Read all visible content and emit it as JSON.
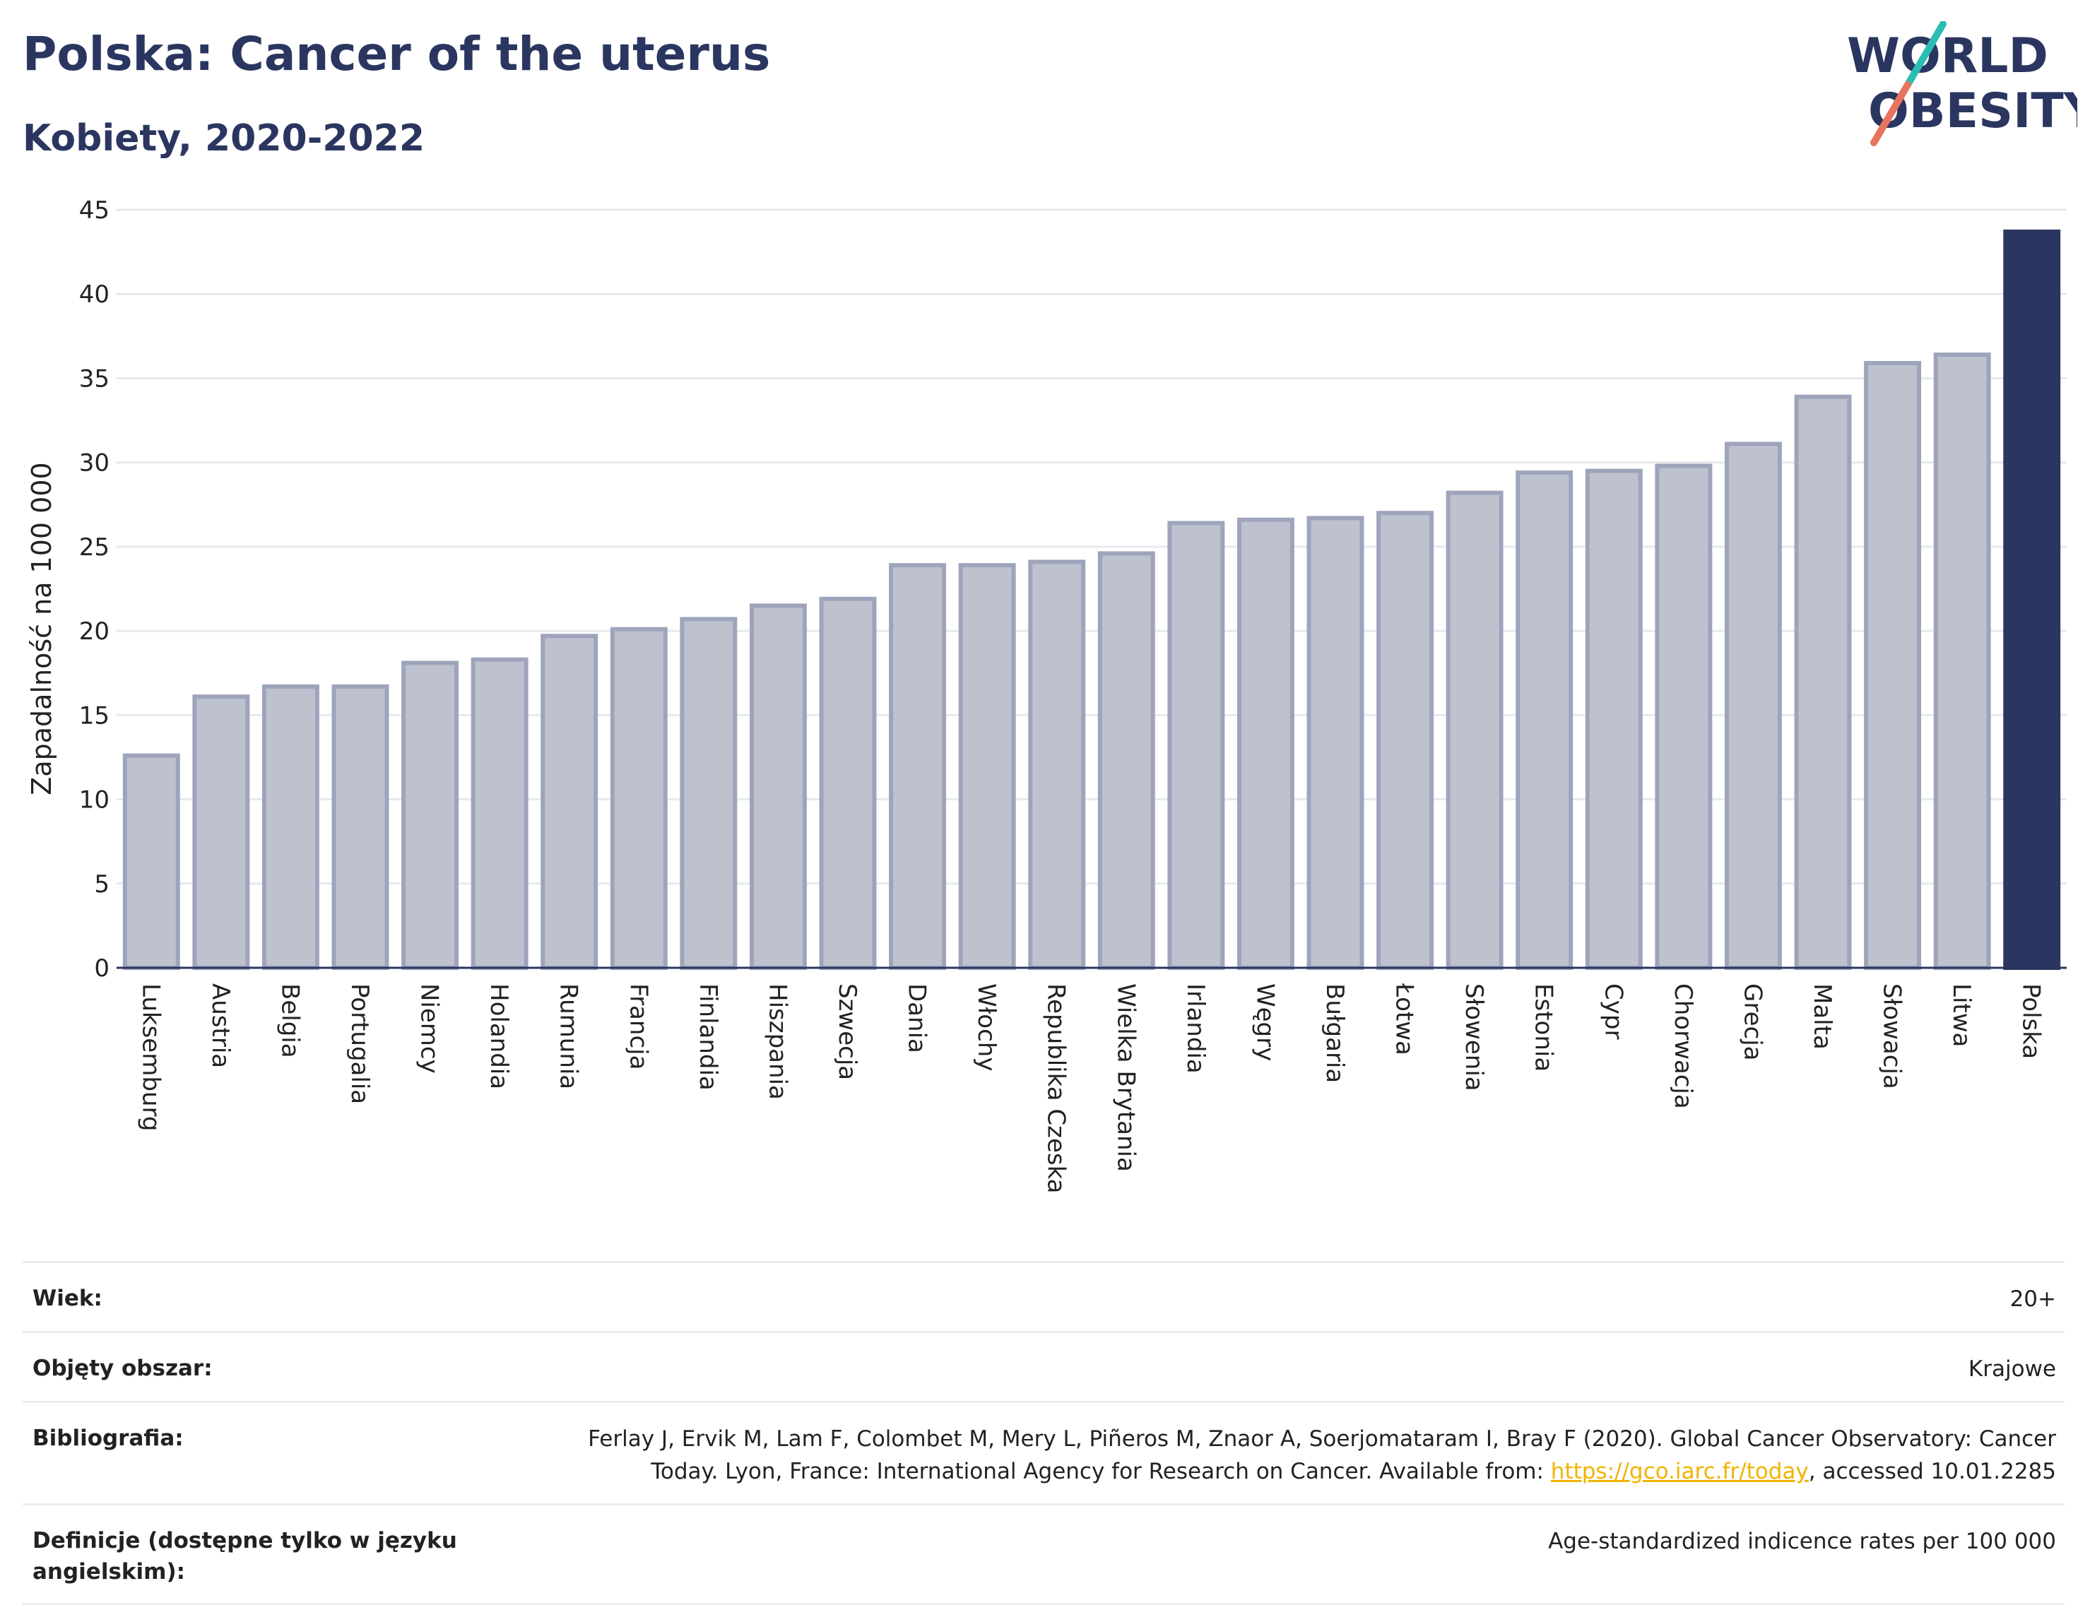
{
  "header": {
    "title": "Polska: Cancer of the uterus",
    "subtitle": "Kobiety, 2020-2022"
  },
  "logo": {
    "line1": "WORLD",
    "line2": "OBESITY",
    "accent_colors": [
      "#2bbdb4",
      "#e8735f"
    ]
  },
  "colors": {
    "bar": "#bec2cf",
    "bar_edge": "#9ea4bb",
    "highlight": "#2b3660",
    "grid": "#e8e9ee",
    "axis": "#2b3660"
  },
  "chart_data": {
    "type": "bar",
    "ylabel": "Zapadalność na 100 000",
    "ylim": [
      0,
      45
    ],
    "yticks": [
      0,
      5,
      10,
      15,
      20,
      25,
      30,
      35,
      40,
      45
    ],
    "grid": true,
    "highlight": "Polska",
    "categories": [
      "Luksemburg",
      "Austria",
      "Belgia",
      "Portugalia",
      "Niemcy",
      "Holandia",
      "Rumunia",
      "Francja",
      "Finlandia",
      "Hiszpania",
      "Szwecja",
      "Dania",
      "Włochy",
      "Republika Czeska",
      "Wielka Brytania",
      "Irlandia",
      "Węgry",
      "Bułgaria",
      "Łotwa",
      "Słowenia",
      "Estonia",
      "Cypr",
      "Chorwacja",
      "Grecja",
      "Malta",
      "Słowacja",
      "Litwa",
      "Polska"
    ],
    "values": [
      12.6,
      16.1,
      16.7,
      16.7,
      18.1,
      18.3,
      19.7,
      20.1,
      20.7,
      21.5,
      21.9,
      23.9,
      23.9,
      24.1,
      24.6,
      26.4,
      26.6,
      26.7,
      27.0,
      28.2,
      29.4,
      29.5,
      29.8,
      31.1,
      33.9,
      35.9,
      36.4,
      43.7
    ]
  },
  "info": {
    "age_label": "Wiek:",
    "age_value": "20+",
    "area_label": "Objęty obszar:",
    "area_value": "Krajowe",
    "biblio_label": "Bibliografia:",
    "biblio_text1": "Ferlay J, Ervik M, Lam F, Colombet M, Mery L, Piñeros M, Znaor A, Soerjomataram I, Bray F (2020). Global Cancer Observatory: Cancer",
    "biblio_text2": "Today. Lyon, France: International Agency for Research on Cancer. Available from: ",
    "biblio_link": "https://gco.iarc.fr/today",
    "biblio_text3": ", accessed 10.01.2285",
    "def_label": "Definicje (dostępne tylko w języku angielskim):",
    "def_value": "Age-standardized indicence rates per 100 000"
  }
}
